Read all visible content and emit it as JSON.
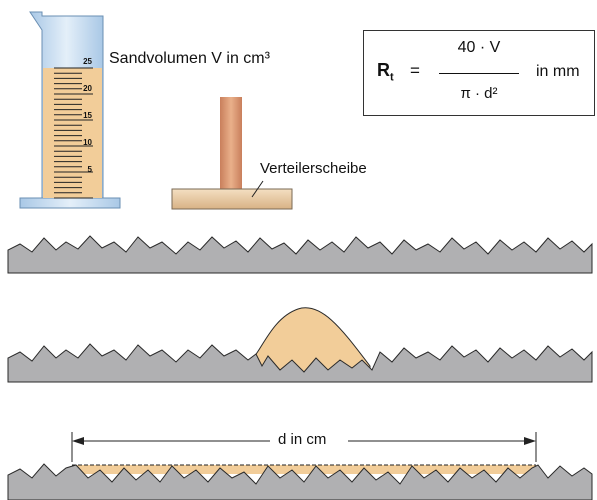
{
  "labels": {
    "sand_volume": "Sandvolumen V in cm³",
    "spreader_disc": "Verteilerscheibe",
    "diameter": "d in cm"
  },
  "cylinder_scale": [
    "25",
    "20",
    "15",
    "10",
    "5"
  ],
  "formula": {
    "symbol": "R",
    "subscript": "t",
    "equals": "=",
    "numerator": "40 · V",
    "denominator": "π · d²",
    "unit": "in mm"
  },
  "colors": {
    "sand": "#f2cd99",
    "surface": "#b0b0b2",
    "cylinder": "#c6dbee",
    "disc_stem": "#d49a6f",
    "disc_base": "#e8c9a0"
  }
}
